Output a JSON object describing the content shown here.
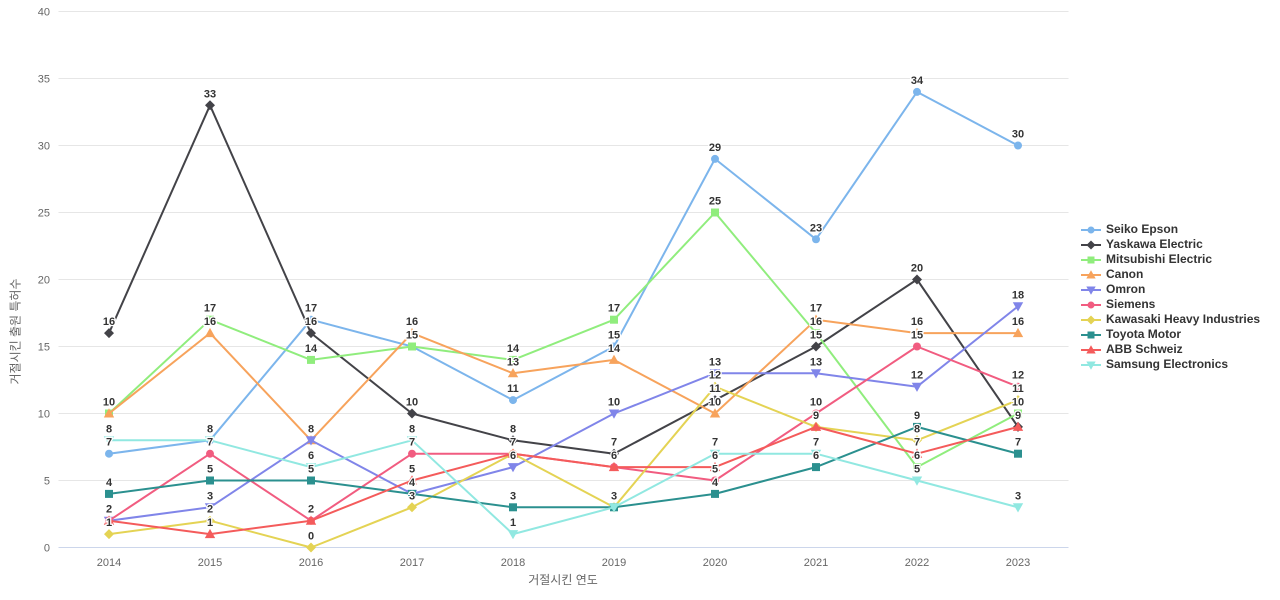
{
  "chart_data": {
    "type": "line",
    "categories": [
      "2014",
      "2015",
      "2016",
      "2017",
      "2018",
      "2019",
      "2020",
      "2021",
      "2022",
      "2023"
    ],
    "series": [
      {
        "name": "Seiko Epson",
        "color": "#7cb5ec",
        "marker": "circle",
        "values": [
          7,
          8,
          17,
          15,
          11,
          15,
          29,
          23,
          34,
          30
        ]
      },
      {
        "name": "Yaskawa Electric",
        "color": "#434348",
        "marker": "diamond",
        "values": [
          16,
          33,
          16,
          10,
          8,
          7,
          11,
          15,
          20,
          9
        ]
      },
      {
        "name": "Mitsubishi Electric",
        "color": "#90ed7d",
        "marker": "square",
        "values": [
          10,
          17,
          14,
          15,
          14,
          17,
          25,
          16,
          6,
          10
        ]
      },
      {
        "name": "Canon",
        "color": "#f7a35c",
        "marker": "triangle",
        "values": [
          10,
          16,
          8,
          16,
          13,
          14,
          10,
          17,
          16,
          16
        ]
      },
      {
        "name": "Omron",
        "color": "#8085e9",
        "marker": "triangle-down",
        "values": [
          2,
          3,
          8,
          4,
          6,
          10,
          13,
          13,
          12,
          18
        ]
      },
      {
        "name": "Siemens",
        "color": "#f15c80",
        "marker": "circle",
        "values": [
          2,
          7,
          2,
          7,
          7,
          6,
          5,
          10,
          15,
          12
        ]
      },
      {
        "name": "Kawasaki Heavy Industries",
        "color": "#e4d354",
        "marker": "diamond",
        "values": [
          1,
          2,
          0,
          3,
          7,
          3,
          12,
          9,
          8,
          11
        ]
      },
      {
        "name": "Toyota Motor",
        "color": "#2b908f",
        "marker": "square",
        "values": [
          4,
          5,
          5,
          4,
          3,
          3,
          4,
          6,
          9,
          7
        ]
      },
      {
        "name": "ABB Schweiz",
        "color": "#f45b5b",
        "marker": "triangle",
        "values": [
          2,
          1,
          2,
          5,
          7,
          6,
          6,
          9,
          7,
          9
        ]
      },
      {
        "name": "Samsung Electronics",
        "color": "#91e8e1",
        "marker": "triangle-down",
        "values": [
          8,
          8,
          6,
          8,
          1,
          3,
          7,
          7,
          5,
          3
        ]
      }
    ],
    "xlabel": "거절시킨 연도",
    "ylabel": "거절시킨 출원 특허수",
    "ylim": [
      0,
      40
    ],
    "ytick_step": 5,
    "yticks": [
      0,
      5,
      10,
      15,
      20,
      25,
      30,
      35,
      40
    ],
    "grid": true,
    "legend_position": "right",
    "colors": {
      "grid": "#e6e6e6",
      "axis_line": "#ccd6eb",
      "tick_label": "#666666",
      "axis_title": "#666666",
      "legend_text": "#333333",
      "data_label": "#333333"
    }
  }
}
